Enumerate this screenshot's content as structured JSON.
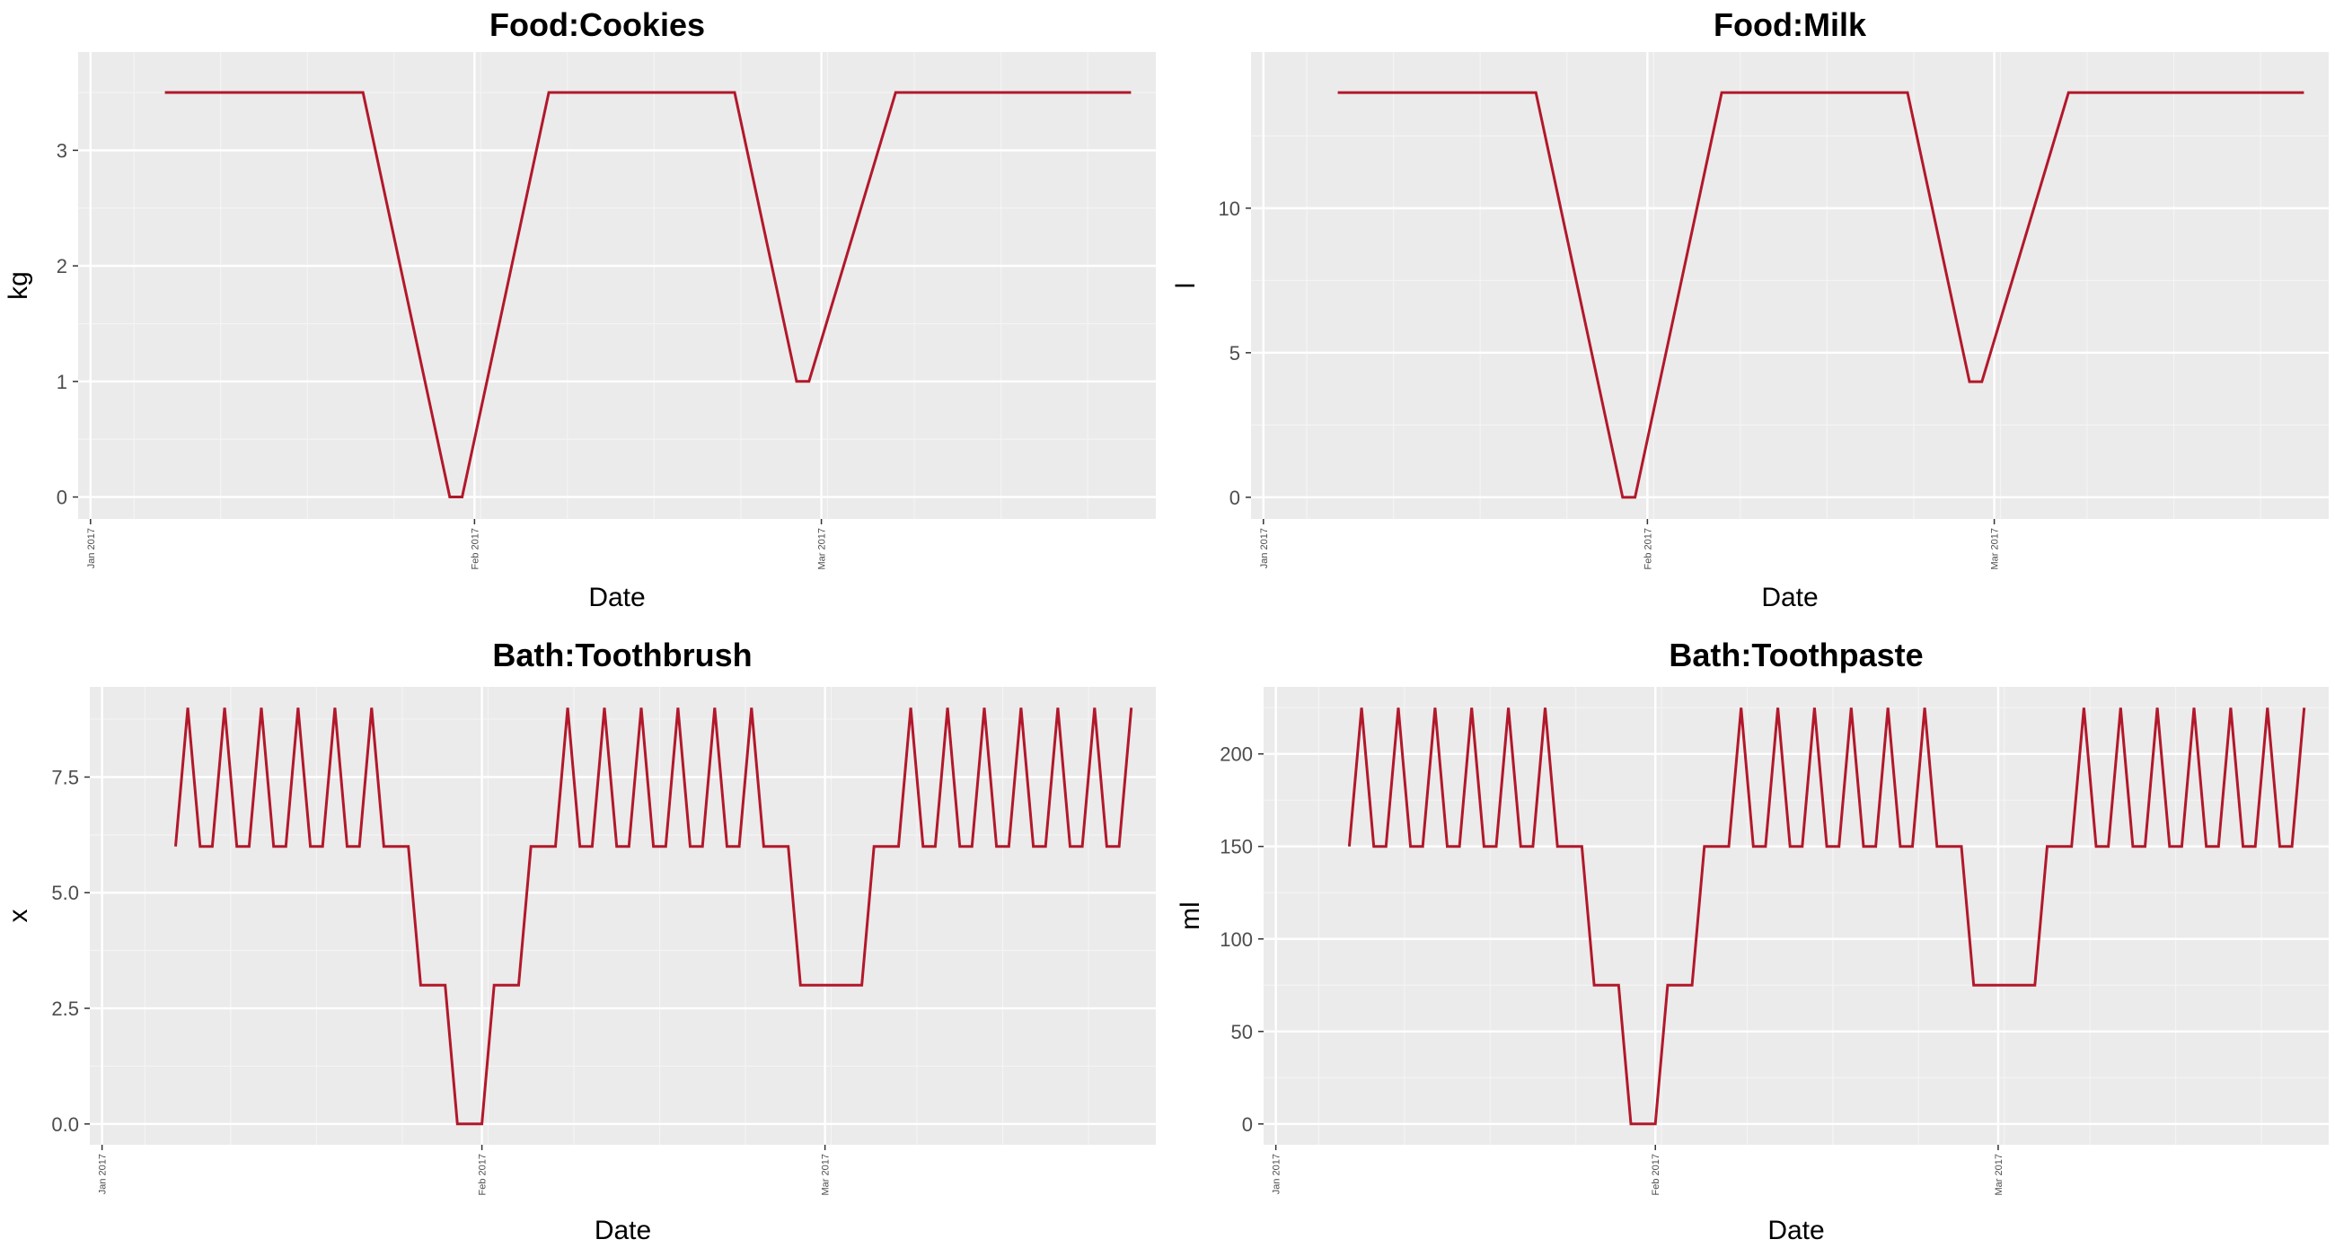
{
  "colors": {
    "panel": "#ebebeb",
    "grid_major": "#ffffff",
    "grid_minor": "#f4f4f4",
    "line": "#b2182b",
    "tick_text": "#4d4d4d"
  },
  "chart_data": [
    {
      "type": "line",
      "title": "Food:Cookies",
      "xlabel": "Date",
      "ylabel": "kg",
      "xlim": [
        "2016-12-31",
        "2017-03-28"
      ],
      "ylim": [
        -0.19,
        3.85
      ],
      "x_ticks": [
        {
          "date": "2017-01-01",
          "label": "Jan 2017"
        },
        {
          "date": "2017-02-01",
          "label": "Feb 2017"
        },
        {
          "date": "2017-03-01",
          "label": "Mar 2017"
        }
      ],
      "y_ticks": [
        {
          "value": 0,
          "label": "0"
        },
        {
          "value": 1,
          "label": "1"
        },
        {
          "value": 2,
          "label": "2"
        },
        {
          "value": 3,
          "label": "3"
        }
      ],
      "series": [
        {
          "x": [
            "2017-01-07",
            "2017-01-23",
            "2017-01-30",
            "2017-01-31",
            "2017-02-07",
            "2017-02-22",
            "2017-02-27",
            "2017-02-28",
            "2017-03-07",
            "2017-03-26"
          ],
          "y": [
            3.5,
            3.5,
            0,
            0,
            3.5,
            3.5,
            1,
            1,
            3.5,
            3.5
          ]
        }
      ]
    },
    {
      "type": "line",
      "title": "Food:Milk",
      "xlabel": "Date",
      "ylabel": "l",
      "xlim": [
        "2016-12-31",
        "2017-03-28"
      ],
      "ylim": [
        -0.75,
        15.4
      ],
      "x_ticks": [
        {
          "date": "2017-01-01",
          "label": "Jan 2017"
        },
        {
          "date": "2017-02-01",
          "label": "Feb 2017"
        },
        {
          "date": "2017-03-01",
          "label": "Mar 2017"
        }
      ],
      "y_ticks": [
        {
          "value": 0,
          "label": "0"
        },
        {
          "value": 5,
          "label": "5"
        },
        {
          "value": 10,
          "label": "10"
        }
      ],
      "series": [
        {
          "x": [
            "2017-01-07",
            "2017-01-23",
            "2017-01-30",
            "2017-01-31",
            "2017-02-07",
            "2017-02-22",
            "2017-02-27",
            "2017-02-28",
            "2017-03-07",
            "2017-03-26"
          ],
          "y": [
            14,
            14,
            0,
            0,
            14,
            14,
            4,
            4,
            14,
            14
          ]
        }
      ]
    },
    {
      "type": "line",
      "title": "Bath:Toothbrush",
      "xlabel": "Date",
      "ylabel": "x",
      "xlim": [
        "2016-12-31",
        "2017-03-28"
      ],
      "ylim": [
        -0.45,
        9.45
      ],
      "x_ticks": [
        {
          "date": "2017-01-01",
          "label": "Jan 2017"
        },
        {
          "date": "2017-02-01",
          "label": "Feb 2017"
        },
        {
          "date": "2017-03-01",
          "label": "Mar 2017"
        }
      ],
      "y_ticks": [
        {
          "value": 0,
          "label": "0.0"
        },
        {
          "value": 2.5,
          "label": "2.5"
        },
        {
          "value": 5,
          "label": "5.0"
        },
        {
          "value": 7.5,
          "label": "7.5"
        }
      ],
      "series": [
        {
          "x": [
            "2017-01-07",
            "2017-01-08",
            "2017-01-09",
            "2017-01-10",
            "2017-01-11",
            "2017-01-12",
            "2017-01-13",
            "2017-01-14",
            "2017-01-15",
            "2017-01-16",
            "2017-01-17",
            "2017-01-18",
            "2017-01-19",
            "2017-01-20",
            "2017-01-21",
            "2017-01-22",
            "2017-01-23",
            "2017-01-24",
            "2017-01-25",
            "2017-01-26",
            "2017-01-27",
            "2017-01-28",
            "2017-01-29",
            "2017-01-30",
            "2017-01-31",
            "2017-02-01",
            "2017-02-02",
            "2017-02-03",
            "2017-02-04",
            "2017-02-05",
            "2017-02-06",
            "2017-02-07",
            "2017-02-08",
            "2017-02-09",
            "2017-02-10",
            "2017-02-11",
            "2017-02-12",
            "2017-02-13",
            "2017-02-14",
            "2017-02-15",
            "2017-02-16",
            "2017-02-17",
            "2017-02-18",
            "2017-02-19",
            "2017-02-20",
            "2017-02-21",
            "2017-02-22",
            "2017-02-23",
            "2017-02-24",
            "2017-02-25",
            "2017-02-26",
            "2017-02-27",
            "2017-02-28",
            "2017-03-01",
            "2017-03-02",
            "2017-03-03",
            "2017-03-04",
            "2017-03-05",
            "2017-03-06",
            "2017-03-07",
            "2017-03-08",
            "2017-03-09",
            "2017-03-10",
            "2017-03-11",
            "2017-03-12",
            "2017-03-13",
            "2017-03-14",
            "2017-03-15",
            "2017-03-16",
            "2017-03-17",
            "2017-03-18",
            "2017-03-19",
            "2017-03-20",
            "2017-03-21",
            "2017-03-22",
            "2017-03-23",
            "2017-03-24",
            "2017-03-25",
            "2017-03-26"
          ],
          "y": [
            6,
            9,
            6,
            6,
            9,
            6,
            6,
            9,
            6,
            6,
            9,
            6,
            6,
            9,
            6,
            6,
            9,
            6,
            6,
            6,
            3,
            3,
            3,
            0,
            0,
            0,
            3,
            3,
            3,
            6,
            6,
            6,
            9,
            6,
            6,
            9,
            6,
            6,
            9,
            6,
            6,
            9,
            6,
            6,
            9,
            6,
            6,
            9,
            6,
            6,
            6,
            3,
            3,
            3,
            3,
            3,
            3,
            6,
            6,
            6,
            9,
            6,
            6,
            9,
            6,
            6,
            9,
            6,
            6,
            9,
            6,
            6,
            9,
            6,
            6,
            9,
            6,
            6,
            9
          ]
        }
      ]
    },
    {
      "type": "line",
      "title": "Bath:Toothpaste",
      "xlabel": "Date",
      "ylabel": "ml",
      "xlim": [
        "2016-12-31",
        "2017-03-28"
      ],
      "ylim": [
        -11.25,
        236.25
      ],
      "x_ticks": [
        {
          "date": "2017-01-01",
          "label": "Jan 2017"
        },
        {
          "date": "2017-02-01",
          "label": "Feb 2017"
        },
        {
          "date": "2017-03-01",
          "label": "Mar 2017"
        }
      ],
      "y_ticks": [
        {
          "value": 0,
          "label": "0"
        },
        {
          "value": 50,
          "label": "50"
        },
        {
          "value": 100,
          "label": "100"
        },
        {
          "value": 150,
          "label": "150"
        },
        {
          "value": 200,
          "label": "200"
        }
      ],
      "series": [
        {
          "x": [
            "2017-01-07",
            "2017-01-08",
            "2017-01-09",
            "2017-01-10",
            "2017-01-11",
            "2017-01-12",
            "2017-01-13",
            "2017-01-14",
            "2017-01-15",
            "2017-01-16",
            "2017-01-17",
            "2017-01-18",
            "2017-01-19",
            "2017-01-20",
            "2017-01-21",
            "2017-01-22",
            "2017-01-23",
            "2017-01-24",
            "2017-01-25",
            "2017-01-26",
            "2017-01-27",
            "2017-01-28",
            "2017-01-29",
            "2017-01-30",
            "2017-01-31",
            "2017-02-01",
            "2017-02-02",
            "2017-02-03",
            "2017-02-04",
            "2017-02-05",
            "2017-02-06",
            "2017-02-07",
            "2017-02-08",
            "2017-02-09",
            "2017-02-10",
            "2017-02-11",
            "2017-02-12",
            "2017-02-13",
            "2017-02-14",
            "2017-02-15",
            "2017-02-16",
            "2017-02-17",
            "2017-02-18",
            "2017-02-19",
            "2017-02-20",
            "2017-02-21",
            "2017-02-22",
            "2017-02-23",
            "2017-02-24",
            "2017-02-25",
            "2017-02-26",
            "2017-02-27",
            "2017-02-28",
            "2017-03-01",
            "2017-03-02",
            "2017-03-03",
            "2017-03-04",
            "2017-03-05",
            "2017-03-06",
            "2017-03-07",
            "2017-03-08",
            "2017-03-09",
            "2017-03-10",
            "2017-03-11",
            "2017-03-12",
            "2017-03-13",
            "2017-03-14",
            "2017-03-15",
            "2017-03-16",
            "2017-03-17",
            "2017-03-18",
            "2017-03-19",
            "2017-03-20",
            "2017-03-21",
            "2017-03-22",
            "2017-03-23",
            "2017-03-24",
            "2017-03-25",
            "2017-03-26"
          ],
          "y": [
            150,
            225,
            150,
            150,
            225,
            150,
            150,
            225,
            150,
            150,
            225,
            150,
            150,
            225,
            150,
            150,
            225,
            150,
            150,
            150,
            75,
            75,
            75,
            0,
            0,
            0,
            75,
            75,
            75,
            150,
            150,
            150,
            225,
            150,
            150,
            225,
            150,
            150,
            225,
            150,
            150,
            225,
            150,
            150,
            225,
            150,
            150,
            225,
            150,
            150,
            150,
            75,
            75,
            75,
            75,
            75,
            75,
            150,
            150,
            150,
            225,
            150,
            150,
            225,
            150,
            150,
            225,
            150,
            150,
            225,
            150,
            150,
            225,
            150,
            150,
            225,
            150,
            150,
            225
          ]
        }
      ]
    }
  ]
}
